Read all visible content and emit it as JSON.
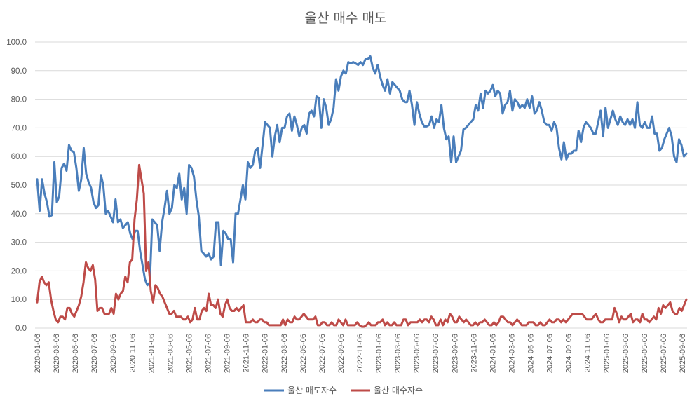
{
  "chart_data": {
    "type": "line",
    "title": "울산 매수 매도",
    "xlabel": "",
    "ylabel": "",
    "ylim": [
      0,
      100
    ],
    "yticks": [
      "0.0",
      "10.0",
      "20.0",
      "30.0",
      "40.0",
      "50.0",
      "60.0",
      "70.0",
      "80.0",
      "90.0",
      "100.0"
    ],
    "x_tick_labels": [
      "2020-01-06",
      "2020-03-06",
      "2020-05-06",
      "2020-07-06",
      "2020-09-06",
      "2020-11-06",
      "2021-01-06",
      "2021-03-06",
      "2021-05-06",
      "2021-07-06",
      "2021-09-06",
      "2021-11-06",
      "2022-01-06",
      "2022-03-06",
      "2022-05-06",
      "2022-07-06",
      "2022-09-06",
      "2022-11-06",
      "2023-01-06",
      "2023-03-06",
      "2023-05-06",
      "2023-07-06",
      "2023-09-06",
      "2023-11-06",
      "2024-01-06",
      "2024-03-06",
      "2024-05-06",
      "2024-07-06",
      "2024-09-06",
      "2024-11-06",
      "2025-01-06",
      "2025-03-06",
      "2025-05-06",
      "2025-07-06",
      "2025-09-06"
    ],
    "grid": true,
    "legend_position": "bottom",
    "series": [
      {
        "name": "울산 매도자수",
        "color": "#4a7ebb",
        "values": [
          52,
          41,
          52,
          47,
          44,
          39,
          39.5,
          58,
          44,
          46,
          56,
          57.5,
          55,
          64,
          62,
          61.5,
          56,
          48,
          52,
          63,
          54,
          51,
          49,
          44,
          42,
          43,
          53.5,
          50,
          40,
          41,
          39,
          37,
          45,
          37,
          38,
          35,
          36,
          37,
          33,
          31,
          34,
          34,
          27,
          22,
          17,
          15,
          16,
          38,
          37,
          36,
          27,
          37,
          42,
          48,
          40,
          42,
          50,
          49,
          54,
          45,
          49,
          40,
          57,
          56,
          53,
          45,
          39,
          27,
          26,
          25,
          26,
          24,
          25,
          37,
          37,
          22,
          34,
          33,
          31,
          31,
          23,
          40,
          40,
          45,
          50,
          45,
          58,
          56,
          57,
          62,
          63,
          56,
          64,
          72,
          71,
          70,
          60,
          67,
          71,
          65,
          70,
          70,
          74,
          75,
          69,
          74,
          71,
          67,
          70,
          71,
          68,
          75,
          76,
          74,
          81,
          80.5,
          70,
          80,
          77,
          71,
          73,
          77,
          87,
          83,
          88,
          90,
          89,
          93,
          92.5,
          93,
          92.5,
          92,
          93,
          92,
          94,
          94,
          95,
          91,
          89,
          92,
          88,
          85,
          83,
          87,
          82,
          86,
          85,
          84,
          83,
          80,
          79,
          79,
          83,
          78,
          71,
          79,
          75,
          72,
          70.5,
          70.5,
          71,
          74,
          70,
          73,
          72,
          78,
          70,
          66,
          67,
          58,
          67,
          58,
          60,
          62,
          69.5,
          70,
          71,
          72,
          73,
          78,
          76,
          82,
          77,
          83,
          82,
          83,
          85,
          81,
          83,
          82,
          75,
          78,
          79,
          83,
          76,
          80,
          79,
          77,
          78,
          77,
          80,
          77,
          81,
          75,
          76,
          79,
          76,
          72,
          71,
          71,
          69,
          72,
          70,
          63,
          59,
          65,
          59,
          61,
          61,
          62,
          62,
          69,
          65,
          70,
          72,
          71,
          70,
          68,
          68,
          72,
          76,
          67,
          77,
          70,
          73,
          76,
          73,
          71,
          74,
          72,
          71,
          73,
          71,
          73,
          70,
          79,
          71,
          70,
          72,
          70,
          70,
          74,
          68,
          68,
          62,
          63,
          66,
          68,
          70,
          67,
          60,
          58,
          66,
          64,
          60,
          61
        ]
      },
      {
        "name": "울산 매수자수",
        "color": "#be4b48",
        "values": [
          9,
          16,
          18,
          16,
          15,
          16,
          10,
          6,
          3,
          2,
          4,
          4,
          3,
          7,
          7,
          5,
          4,
          6,
          8,
          11,
          16,
          23,
          21,
          20,
          22,
          17,
          6,
          7,
          7,
          5,
          5,
          5,
          7,
          5,
          12,
          10,
          12,
          13,
          18,
          16,
          23,
          24,
          38,
          45,
          57,
          52,
          47,
          20,
          23,
          13,
          9,
          15,
          14,
          12,
          11,
          9,
          7,
          5,
          5,
          6,
          4,
          4,
          4,
          3,
          3,
          4,
          2,
          3,
          7,
          3,
          3,
          6,
          7,
          6,
          12,
          8,
          8,
          7,
          10,
          5,
          4,
          8,
          10,
          7,
          6,
          6,
          7,
          6,
          7,
          8,
          2,
          2,
          2,
          3,
          2,
          2,
          3,
          3,
          2,
          2,
          1,
          1,
          1,
          1,
          1,
          1,
          3,
          1,
          3,
          2,
          2,
          4,
          3,
          3,
          4,
          5,
          4,
          3,
          3,
          3,
          4,
          1,
          1,
          2,
          2,
          1,
          1,
          2,
          1,
          1,
          3,
          2,
          1,
          3,
          1,
          1,
          1,
          1,
          2,
          1,
          0.5,
          0.5,
          1,
          2,
          1,
          1,
          1,
          2,
          2,
          3,
          1,
          2,
          1,
          1,
          2,
          1,
          1,
          1,
          3,
          3,
          1,
          2,
          2,
          2,
          2,
          3,
          2,
          3,
          3,
          2,
          4,
          3,
          1,
          1,
          3,
          1,
          3,
          2,
          5,
          4,
          2,
          2,
          4,
          3,
          2,
          3,
          2,
          1,
          1,
          2,
          1,
          2,
          2,
          3,
          2,
          1,
          1,
          2,
          1,
          2,
          4,
          4,
          3,
          2,
          2,
          1,
          2,
          3,
          2,
          1,
          1,
          1,
          2,
          2,
          2,
          1,
          1,
          2,
          1,
          1,
          2,
          3,
          2,
          2,
          3,
          3,
          2,
          3,
          2,
          3,
          4,
          5,
          5,
          5,
          5,
          5,
          4,
          3,
          3,
          3,
          4,
          5,
          3,
          2,
          2,
          3,
          3,
          3,
          3,
          7,
          5,
          2,
          4,
          3,
          3,
          4,
          5,
          2,
          3,
          3,
          2,
          5,
          3,
          3,
          2,
          3,
          4,
          3,
          7,
          5,
          8,
          7,
          8,
          9,
          6,
          5,
          5,
          7,
          6,
          8,
          10
        ]
      }
    ]
  }
}
